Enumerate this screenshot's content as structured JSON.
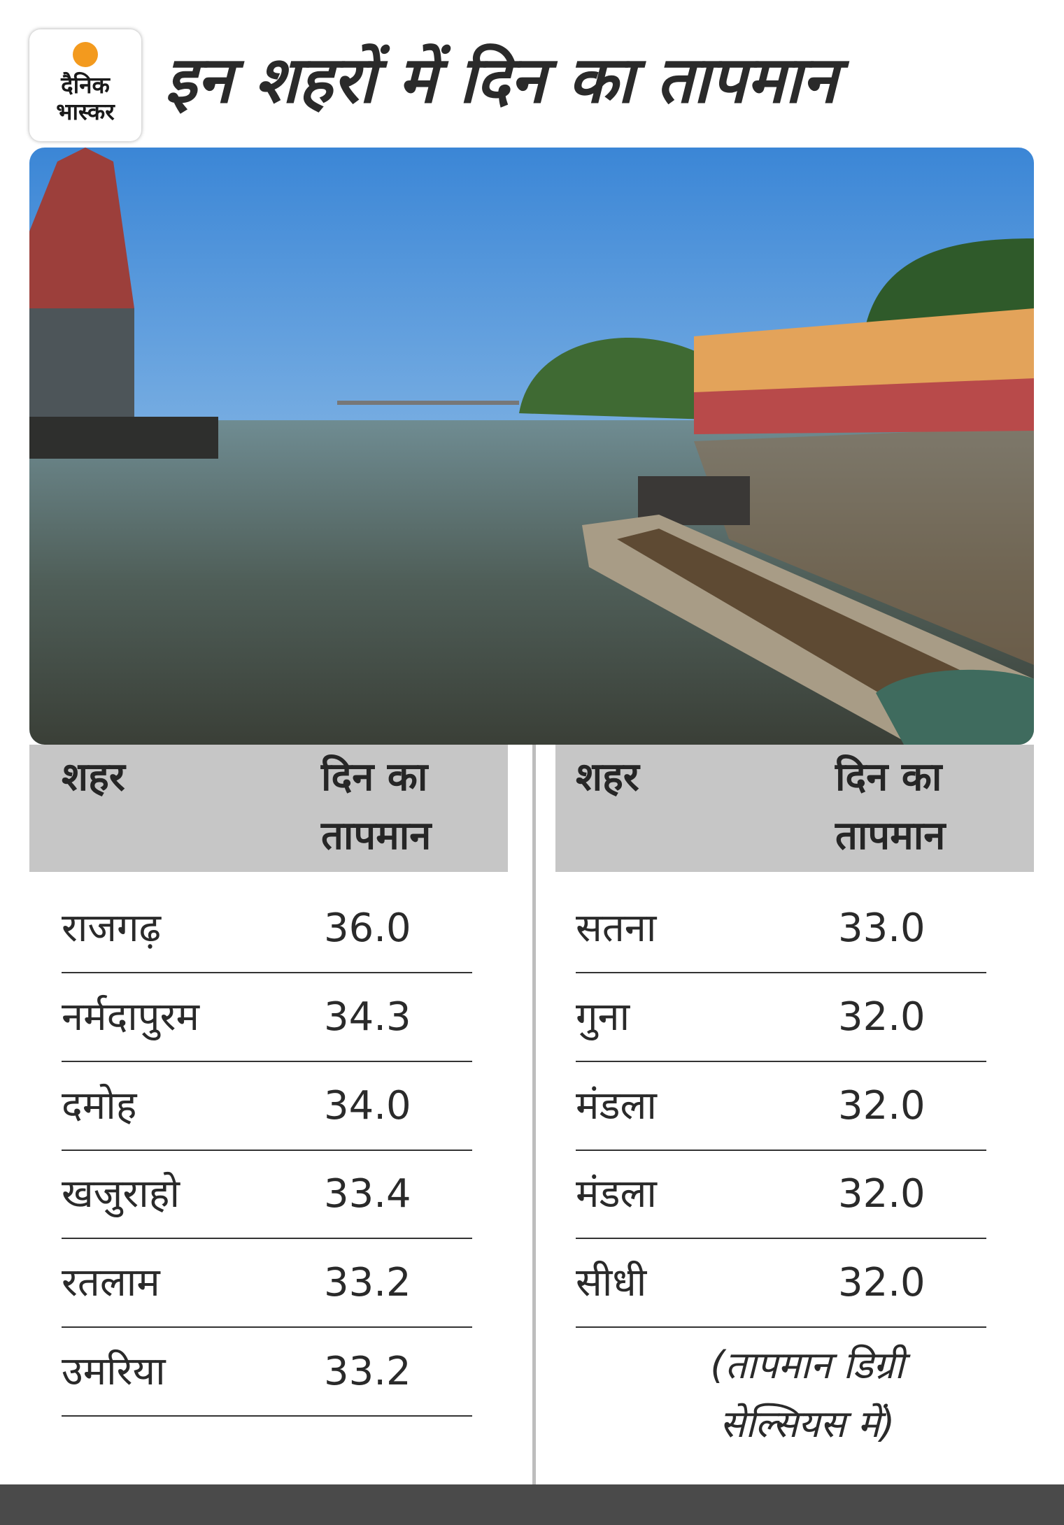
{
  "header": {
    "logo": [
      "दैनिक",
      "भास्कर"
    ],
    "title": "इन शहरों में दिन का तापमान"
  },
  "tables": [
    {
      "columns": [
        "शहर",
        [
          "दिन का",
          "तापमान"
        ]
      ],
      "rows": [
        [
          "राजगढ़",
          "36.0"
        ],
        [
          "नर्मदापुरम",
          "34.3"
        ],
        [
          "दमोह",
          "34.0"
        ],
        [
          "खजुराहो",
          "33.4"
        ],
        [
          "रतलाम",
          "33.2"
        ],
        [
          "उमरिया",
          "33.2"
        ]
      ]
    },
    {
      "columns": [
        "शहर",
        [
          "दिन का",
          "तापमान"
        ]
      ],
      "rows": [
        [
          "सतना",
          "33.0"
        ],
        [
          "गुना",
          "32.0"
        ],
        [
          "मंडला",
          "32.0"
        ],
        [
          "मंडला",
          "32.0"
        ],
        [
          "सीधी",
          "32.0"
        ]
      ]
    }
  ],
  "note": [
    "(तापमान डिग्री",
    "सेल्सियस में)"
  ]
}
